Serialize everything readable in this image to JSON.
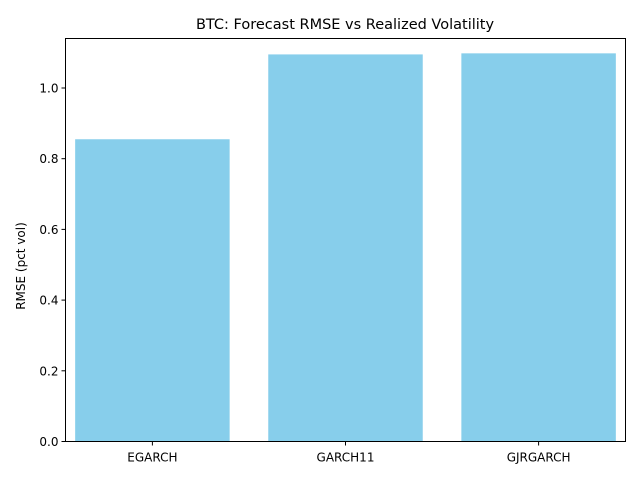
{
  "chart_data": {
    "type": "bar",
    "title": "BTC: Forecast RMSE vs Realized Volatility",
    "xlabel": "",
    "ylabel": "RMSE (pct vol)",
    "categories": [
      "EGARCH",
      "GARCH11",
      "GJRGARCH"
    ],
    "values": [
      0.855,
      1.095,
      1.098
    ],
    "ylim": [
      0,
      1.14
    ],
    "yticks": [
      0.0,
      0.2,
      0.4,
      0.6,
      0.8,
      1.0
    ],
    "ytick_labels": [
      "0.0",
      "0.2",
      "0.4",
      "0.6",
      "0.8",
      "1.0"
    ],
    "grid": false,
    "legend": "none",
    "colors": {
      "bar": "#87ceeb",
      "axis": "#000000",
      "background": "#ffffff"
    }
  }
}
